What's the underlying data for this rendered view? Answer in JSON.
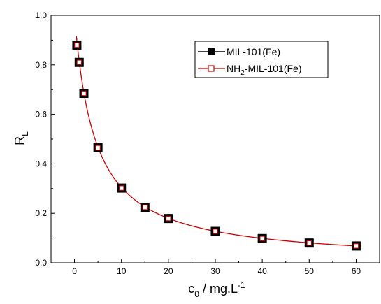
{
  "chart_data": {
    "type": "line",
    "xlabel": {
      "main": "c",
      "sub": "0",
      "rest": " / mg.L",
      "sup": "-1"
    },
    "ylabel": {
      "main": "R",
      "sub": "L"
    },
    "xlim": [
      -5,
      65
    ],
    "ylim": [
      0.0,
      1.0
    ],
    "xticks": [
      0,
      10,
      20,
      30,
      40,
      50,
      60
    ],
    "yticks": [
      0.0,
      0.2,
      0.4,
      0.6,
      0.8,
      1.0
    ],
    "x_tick_labels": [
      "0",
      "10",
      "20",
      "30",
      "40",
      "50",
      "60"
    ],
    "y_tick_labels": [
      "0.0",
      "0.2",
      "0.4",
      "0.6",
      "0.8",
      "1.0"
    ],
    "grid": false,
    "legend_position": "top-right",
    "series": [
      {
        "name": "MIL-101(Fe)",
        "legend_parts": {
          "pre": "MIL-101(Fe)",
          "sub": "",
          "post": ""
        },
        "color": "#000000",
        "marker": "filled-square",
        "x": [
          0.5,
          1,
          2,
          5,
          10,
          15,
          20,
          30,
          40,
          50,
          60
        ],
        "y": [
          0.88,
          0.81,
          0.685,
          0.465,
          0.302,
          0.224,
          0.179,
          0.127,
          0.098,
          0.08,
          0.068
        ]
      },
      {
        "name": "NH2-MIL-101(Fe)",
        "legend_parts": {
          "pre": "NH",
          "sub": "2",
          "post": "-MIL-101(Fe)"
        },
        "color": "#cc0000",
        "marker": "open-square",
        "x": [
          0.5,
          1,
          2,
          5,
          10,
          15,
          20,
          30,
          40,
          50,
          60
        ],
        "y": [
          0.88,
          0.81,
          0.685,
          0.465,
          0.302,
          0.224,
          0.179,
          0.127,
          0.098,
          0.08,
          0.068
        ]
      }
    ],
    "fit_curve": {
      "color": "#cc0000",
      "k": 0.228
    }
  }
}
